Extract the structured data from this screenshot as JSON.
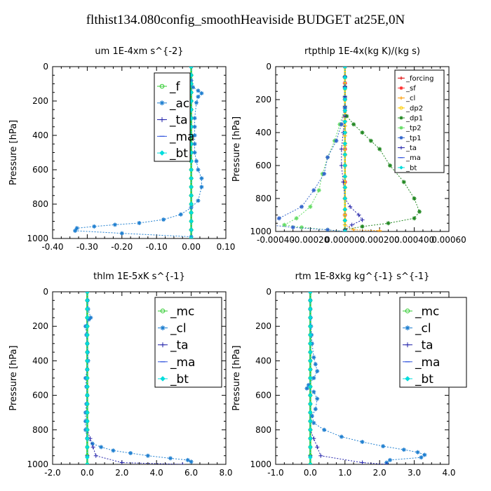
{
  "title": "flthist134.080config_smoothHeaviside  BUDGET at25E,0N",
  "chart_data": [
    {
      "type": "line",
      "title": "um   1E-4xm s^{-2}",
      "ylabel": "Pressure [hPa]",
      "xlim": [
        -0.4,
        0.1
      ],
      "ylim": [
        1000,
        0
      ],
      "xticks": [
        "-0.40",
        "-0.30",
        "-0.20",
        "-0.10",
        "0.00",
        "0.10"
      ],
      "xtick_values": [
        -0.4,
        -0.3,
        -0.2,
        -0.1,
        0.0,
        0.1
      ],
      "yticks": [
        "0",
        "200",
        "400",
        "600",
        "800",
        "1000"
      ],
      "ytick_values": [
        0,
        200,
        400,
        600,
        800,
        1000
      ],
      "legend_style": "medium",
      "series": [
        {
          "name": "_f",
          "color": "#33cc33",
          "marker": "circle",
          "x": [
            0,
            0,
            0,
            0,
            0,
            0,
            0,
            0,
            0,
            0,
            0
          ],
          "y": [
            0,
            100,
            200,
            300,
            400,
            500,
            600,
            700,
            800,
            900,
            1000
          ]
        },
        {
          "name": "_ac",
          "color": "#1f7fd0",
          "marker": "star",
          "x": [
            0.0,
            0.0,
            0.005,
            0.02,
            0.03,
            0.02,
            0.015,
            0.01,
            0.01,
            0.01,
            0.02,
            0.03,
            0.03,
            0.02,
            0.0,
            -0.03,
            -0.08,
            -0.15,
            -0.22,
            -0.28,
            -0.33,
            -0.335,
            -0.2,
            0.0
          ],
          "y": [
            0,
            80,
            120,
            140,
            155,
            175,
            210,
            300,
            400,
            500,
            600,
            650,
            700,
            780,
            820,
            860,
            890,
            910,
            920,
            930,
            940,
            955,
            970,
            990
          ]
        },
        {
          "name": "_ta",
          "color": "#2222aa",
          "marker": "plus",
          "x": [
            0,
            0,
            0,
            0,
            0,
            0,
            0,
            0,
            0,
            0,
            0
          ],
          "y": [
            0,
            100,
            200,
            300,
            400,
            500,
            600,
            700,
            800,
            900,
            1000
          ]
        },
        {
          "name": "_ma",
          "color": "#3355dd",
          "marker": "dash",
          "x": [
            0,
            0,
            0,
            0,
            0,
            0,
            0,
            0,
            0,
            0,
            0
          ],
          "y": [
            0,
            100,
            200,
            300,
            400,
            500,
            600,
            700,
            800,
            900,
            1000
          ]
        },
        {
          "name": "_bt",
          "color": "#00dddd",
          "marker": "diamond",
          "x": [
            0,
            0,
            0,
            0,
            0,
            0,
            0,
            0,
            0,
            0,
            0
          ],
          "y": [
            0,
            100,
            200,
            300,
            400,
            500,
            600,
            700,
            800,
            900,
            1000
          ]
        }
      ]
    },
    {
      "type": "line",
      "title": "rtpthlp   1E-4x(kg K)/(kg s)",
      "ylabel": "Pressure [hPa]",
      "xlim": [
        -0.0004,
        0.0006
      ],
      "ylim": [
        1000,
        0
      ],
      "xticks": [
        "-0.00040",
        "-0.00020",
        "0.000000",
        "0.000200",
        "0.000400",
        "0.00060"
      ],
      "xtick_values": [
        -0.0004,
        -0.0002,
        0.0,
        0.0002,
        0.0004,
        0.0006
      ],
      "yticks": [
        "0",
        "200",
        "400",
        "600",
        "800",
        "1000"
      ],
      "ytick_values": [
        0,
        200,
        400,
        600,
        800,
        1000
      ],
      "legend_style": "small",
      "series": [
        {
          "name": "_forcing",
          "color": "#dd0000",
          "marker": "plus",
          "x": [
            0,
            0,
            0,
            0,
            0,
            0,
            0,
            0,
            0,
            0,
            0
          ],
          "y": [
            0,
            100,
            200,
            300,
            400,
            500,
            600,
            700,
            800,
            900,
            1000
          ]
        },
        {
          "name": "_sf",
          "color": "#ff3333",
          "marker": "star",
          "x": [
            0,
            0,
            0,
            0,
            0,
            0,
            0,
            0,
            0,
            0,
            0
          ],
          "y": [
            0,
            100,
            200,
            300,
            400,
            500,
            600,
            700,
            800,
            900,
            1000
          ]
        },
        {
          "name": "_cl",
          "color": "#ff9900",
          "marker": "plus",
          "x": [
            0,
            0,
            0,
            0,
            0,
            0.0,
            5e-05,
            0.0002,
            0.0002
          ],
          "y": [
            0,
            300,
            600,
            800,
            900,
            960,
            990,
            995,
            1000
          ]
        },
        {
          "name": "_dp2",
          "color": "#ffcc00",
          "marker": "circle",
          "x": [
            0,
            0,
            0,
            0,
            0,
            0
          ],
          "y": [
            0,
            200,
            400,
            600,
            800,
            1000
          ]
        },
        {
          "name": "_dp1",
          "color": "#228822",
          "marker": "star",
          "x": [
            0,
            0,
            1e-05,
            5e-05,
            0.0001,
            0.00015,
            0.0002,
            0.00026,
            0.00034,
            0.0004,
            0.00043,
            0.0004,
            0.00025,
            0.0001,
            0.0
          ],
          "y": [
            0,
            250,
            300,
            350,
            400,
            450,
            500,
            600,
            700,
            800,
            880,
            920,
            950,
            970,
            990
          ]
        },
        {
          "name": "_tp2",
          "color": "#66dd66",
          "marker": "star",
          "x": [
            0,
            0,
            -3e-05,
            -6e-05,
            -0.0001,
            -0.00013,
            -0.00015,
            -0.0002,
            -0.00028,
            -0.00035,
            -0.00025,
            -0.0001,
            0.0
          ],
          "y": [
            0,
            250,
            350,
            450,
            550,
            650,
            750,
            850,
            920,
            960,
            975,
            990,
            1000
          ]
        },
        {
          "name": "_tp1",
          "color": "#3366cc",
          "marker": "star",
          "x": [
            0,
            0,
            -2e-05,
            -5e-05,
            -0.0001,
            -0.00012,
            -0.00018,
            -0.00025,
            -0.00038,
            -0.00044,
            -0.0003,
            -0.0001,
            0.0
          ],
          "y": [
            0,
            250,
            350,
            450,
            550,
            650,
            750,
            850,
            920,
            960,
            975,
            990,
            1000
          ]
        },
        {
          "name": "_ta",
          "color": "#2222aa",
          "marker": "plus",
          "x": [
            0,
            0,
            -1e-05,
            -2e-05,
            -2e-05,
            -1e-05,
            0.0,
            3e-05,
            8e-05,
            0.0001,
            4e-05,
            0.0
          ],
          "y": [
            0,
            300,
            400,
            500,
            600,
            700,
            800,
            850,
            900,
            930,
            960,
            990
          ]
        },
        {
          "name": "_ma",
          "color": "#3355dd",
          "marker": "dash",
          "x": [
            0,
            0,
            0,
            0,
            0,
            0
          ],
          "y": [
            0,
            200,
            400,
            600,
            800,
            1000
          ]
        },
        {
          "name": "_bt",
          "color": "#00dddd",
          "marker": "diamond",
          "x": [
            0,
            0,
            0,
            0,
            0,
            0
          ],
          "y": [
            0,
            200,
            400,
            600,
            800,
            1000
          ]
        }
      ]
    },
    {
      "type": "line",
      "title": "thlm   1E-5xK s^{-1}",
      "ylabel": "Pressure [hPa]",
      "xlim": [
        -2.0,
        8.0
      ],
      "ylim": [
        1000,
        0
      ],
      "xticks": [
        "-2.0",
        "0.0",
        "2.0",
        "4.0",
        "6.0",
        "8.0"
      ],
      "xtick_values": [
        -2,
        0,
        2,
        4,
        6,
        8
      ],
      "yticks": [
        "0",
        "200",
        "400",
        "600",
        "800",
        "1000"
      ],
      "ytick_values": [
        0,
        200,
        400,
        600,
        800,
        1000
      ],
      "legend_style": "big",
      "series": [
        {
          "name": "_mc",
          "color": "#33cc33",
          "marker": "circle",
          "x": [
            0,
            0,
            0,
            0,
            0,
            0,
            0,
            0,
            0,
            0,
            0
          ],
          "y": [
            0,
            100,
            200,
            300,
            400,
            500,
            600,
            700,
            800,
            900,
            1000
          ]
        },
        {
          "name": "_cl",
          "color": "#1f7fd0",
          "marker": "star",
          "x": [
            0,
            0.05,
            0.2,
            0.1,
            -0.1,
            -0.05,
            0.0,
            0.05,
            0.0,
            -0.1,
            -0.05,
            0.0,
            -0.1,
            -0.1,
            0.0,
            0.3,
            0.8,
            1.5,
            2.5,
            3.5,
            4.8,
            5.8,
            6.0
          ],
          "y": [
            0,
            100,
            150,
            160,
            200,
            250,
            300,
            400,
            450,
            500,
            550,
            600,
            700,
            800,
            850,
            880,
            900,
            920,
            935,
            950,
            965,
            975,
            985
          ]
        },
        {
          "name": "_ta",
          "color": "#2222aa",
          "marker": "plus",
          "x": [
            0,
            0,
            0,
            0,
            0,
            0,
            0,
            0,
            0,
            0.5,
            2.0,
            5.5
          ],
          "y": [
            0,
            100,
            200,
            300,
            400,
            500,
            600,
            700,
            800,
            950,
            990,
            1000
          ]
        },
        {
          "name": "_ma",
          "color": "#3355dd",
          "marker": "dash",
          "x": [
            0,
            0,
            0,
            0,
            0,
            0,
            0,
            0,
            0,
            0,
            0
          ],
          "y": [
            0,
            100,
            200,
            300,
            400,
            500,
            600,
            700,
            800,
            900,
            1000
          ]
        },
        {
          "name": "_bt",
          "color": "#00dddd",
          "marker": "diamond",
          "x": [
            0,
            0,
            0,
            0,
            0,
            0,
            0,
            0,
            0,
            0,
            0,
            0
          ],
          "y": [
            0,
            100,
            200,
            300,
            400,
            500,
            600,
            700,
            800,
            900,
            960,
            1000
          ]
        }
      ]
    },
    {
      "type": "line",
      "title": "rtm   1E-8xkg kg^{-1} s^{-1}",
      "ylabel": "Pressure [hPa]",
      "xlim": [
        -1.0,
        4.0
      ],
      "ylim": [
        1000,
        0
      ],
      "xticks": [
        "-1.0",
        "0.0",
        "1.0",
        "2.0",
        "3.0",
        "4.0"
      ],
      "xtick_values": [
        -1,
        0,
        1,
        2,
        3,
        4
      ],
      "yticks": [
        "0",
        "200",
        "400",
        "600",
        "800",
        "1000"
      ],
      "ytick_values": [
        0,
        200,
        400,
        600,
        800,
        1000
      ],
      "legend_style": "big",
      "series": [
        {
          "name": "_mc",
          "color": "#33cc33",
          "marker": "circle",
          "x": [
            0,
            0,
            0,
            0,
            0,
            0,
            0,
            0,
            0,
            0,
            0
          ],
          "y": [
            0,
            100,
            200,
            300,
            400,
            500,
            600,
            700,
            800,
            900,
            1000
          ]
        },
        {
          "name": "_cl",
          "color": "#1f7fd0",
          "marker": "star",
          "x": [
            0,
            0,
            0.02,
            0.05,
            0.1,
            0.15,
            0.2,
            0.1,
            -0.05,
            -0.1,
            0.1,
            0.2,
            0.15,
            0.05,
            0.1,
            0.4,
            0.9,
            1.5,
            2.1,
            2.7,
            3.1,
            3.3,
            3.2,
            2.3,
            2.2
          ],
          "y": [
            0,
            100,
            200,
            300,
            380,
            420,
            460,
            500,
            540,
            560,
            580,
            620,
            680,
            720,
            760,
            800,
            840,
            870,
            895,
            915,
            930,
            945,
            960,
            975,
            990
          ]
        },
        {
          "name": "_ta",
          "color": "#2222aa",
          "marker": "plus",
          "x": [
            0,
            0,
            0,
            0,
            0,
            0,
            0,
            0,
            0,
            0.3,
            1.5,
            2.2
          ],
          "y": [
            0,
            100,
            200,
            300,
            400,
            500,
            600,
            700,
            800,
            950,
            990,
            1000
          ]
        },
        {
          "name": "_ma",
          "color": "#3355dd",
          "marker": "dash",
          "x": [
            0,
            0,
            0,
            0,
            0,
            0,
            0,
            0,
            0,
            0,
            0
          ],
          "y": [
            0,
            100,
            200,
            300,
            400,
            500,
            600,
            700,
            800,
            900,
            1000
          ]
        },
        {
          "name": "_bt",
          "color": "#00dddd",
          "marker": "diamond",
          "x": [
            0,
            0,
            0,
            0,
            0,
            0,
            0,
            0,
            0,
            0,
            0,
            0
          ],
          "y": [
            0,
            100,
            200,
            300,
            400,
            500,
            600,
            700,
            800,
            900,
            960,
            1000
          ]
        }
      ]
    }
  ]
}
